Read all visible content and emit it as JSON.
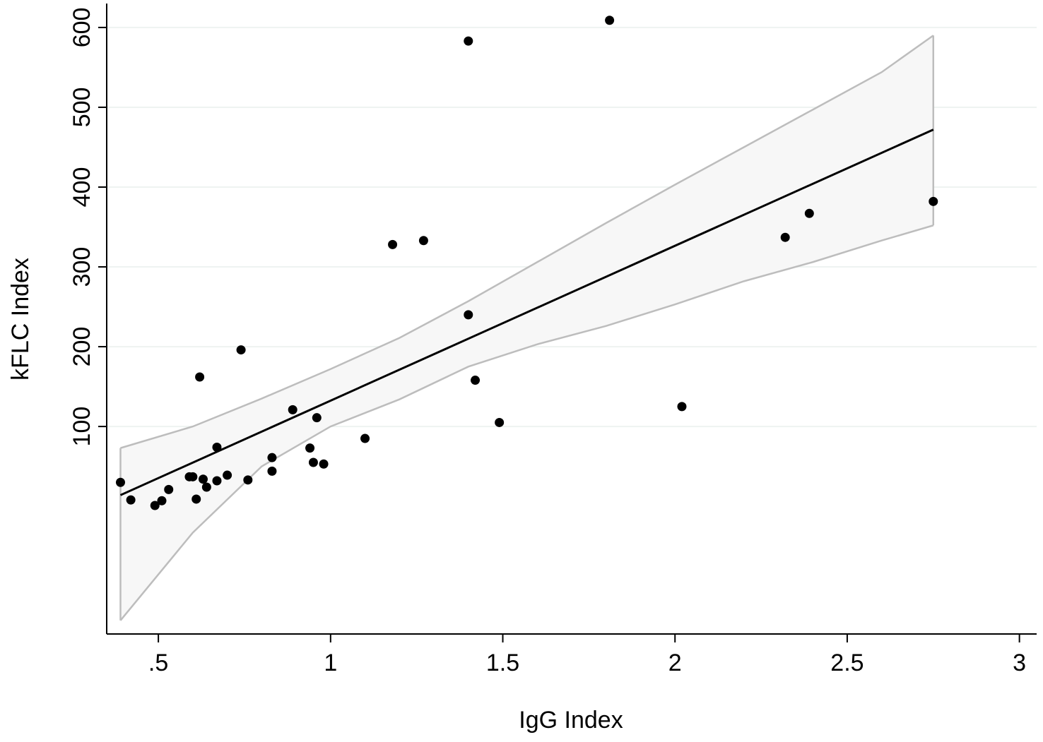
{
  "chart_data": {
    "type": "scatter",
    "title": "",
    "xlabel": "IgG Index",
    "ylabel": "kFLC Index",
    "xlim": [
      0.35,
      3.05
    ],
    "ylim": [
      -160,
      630
    ],
    "x_ticks": [
      {
        "value": 0.5,
        "label": ".5"
      },
      {
        "value": 1,
        "label": "1"
      },
      {
        "value": 1.5,
        "label": "1.5"
      },
      {
        "value": 2,
        "label": "2"
      },
      {
        "value": 2.5,
        "label": "2.5"
      },
      {
        "value": 3,
        "label": "3"
      }
    ],
    "y_ticks": [
      {
        "value": 100,
        "label": "100"
      },
      {
        "value": 200,
        "label": "200"
      },
      {
        "value": 300,
        "label": "300"
      },
      {
        "value": 400,
        "label": "400"
      },
      {
        "value": 500,
        "label": "500"
      },
      {
        "value": 600,
        "label": "600"
      }
    ],
    "grid": true,
    "legend": "none",
    "colors": {
      "points": "#000000",
      "fit_line": "#000000",
      "ci_fill": "#f7f7f7",
      "ci_border": "#bdbdbd",
      "grid": "#eef3f1",
      "axis": "#000000"
    },
    "points": [
      {
        "x": 0.39,
        "y": 30
      },
      {
        "x": 0.42,
        "y": 8
      },
      {
        "x": 0.49,
        "y": 1
      },
      {
        "x": 0.51,
        "y": 7
      },
      {
        "x": 0.53,
        "y": 21
      },
      {
        "x": 0.59,
        "y": 37
      },
      {
        "x": 0.6,
        "y": 37
      },
      {
        "x": 0.61,
        "y": 9
      },
      {
        "x": 0.62,
        "y": 162
      },
      {
        "x": 0.63,
        "y": 34
      },
      {
        "x": 0.64,
        "y": 24
      },
      {
        "x": 0.67,
        "y": 74
      },
      {
        "x": 0.67,
        "y": 32
      },
      {
        "x": 0.7,
        "y": 39
      },
      {
        "x": 0.74,
        "y": 196
      },
      {
        "x": 0.76,
        "y": 33
      },
      {
        "x": 0.83,
        "y": 61
      },
      {
        "x": 0.83,
        "y": 44
      },
      {
        "x": 0.89,
        "y": 121
      },
      {
        "x": 0.94,
        "y": 73
      },
      {
        "x": 0.95,
        "y": 55
      },
      {
        "x": 0.96,
        "y": 111
      },
      {
        "x": 0.98,
        "y": 53
      },
      {
        "x": 1.1,
        "y": 85
      },
      {
        "x": 1.18,
        "y": 328
      },
      {
        "x": 1.27,
        "y": 333
      },
      {
        "x": 1.4,
        "y": 583
      },
      {
        "x": 1.4,
        "y": 240
      },
      {
        "x": 1.42,
        "y": 158
      },
      {
        "x": 1.49,
        "y": 105
      },
      {
        "x": 1.81,
        "y": 609
      },
      {
        "x": 2.02,
        "y": 125
      },
      {
        "x": 2.32,
        "y": 337
      },
      {
        "x": 2.39,
        "y": 367
      },
      {
        "x": 2.75,
        "y": 382
      }
    ],
    "fit_line": {
      "x": [
        0.39,
        2.75
      ],
      "y": [
        14,
        472
      ]
    },
    "confidence_band": {
      "x": [
        0.39,
        0.6,
        0.8,
        1.0,
        1.2,
        1.4,
        1.6,
        1.8,
        2.0,
        2.2,
        2.4,
        2.6,
        2.75
      ],
      "upper": [
        73,
        100,
        135,
        172,
        211,
        257,
        306,
        355,
        403,
        450,
        497,
        544,
        590
      ],
      "lower": [
        -143,
        -33,
        50,
        100,
        134,
        175,
        203,
        226,
        253,
        282,
        306,
        333,
        352
      ]
    }
  }
}
